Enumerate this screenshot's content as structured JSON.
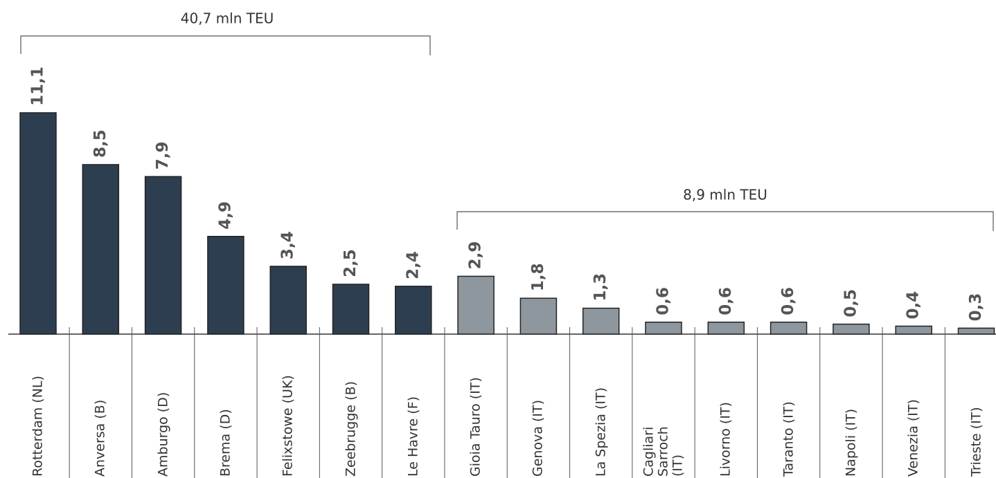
{
  "chart_data": {
    "type": "bar",
    "categories": [
      "Rotterdam (NL)",
      "Anversa (B)",
      "Amburgo (D)",
      "Brema (D)",
      "Felixstowe (UK)",
      "Zeebrugge (B)",
      "Le Havre (F)",
      "Gioia Tauro (IT)",
      "Genova (IT)",
      "La Spezia (IT)",
      "Cagliari Sarroch (IT)",
      "Livorno (IT)",
      "Taranto (IT)",
      "Napoli (IT)",
      "Venezia (IT)",
      "Trieste (IT)"
    ],
    "values": [
      11.1,
      8.5,
      7.9,
      4.9,
      3.4,
      2.5,
      2.4,
      2.9,
      1.8,
      1.3,
      0.6,
      0.6,
      0.6,
      0.5,
      0.4,
      0.3
    ],
    "value_labels": [
      "11,1",
      "8,5",
      "7,9",
      "4,9",
      "3,4",
      "2,5",
      "2,4",
      "2,9",
      "1,8",
      "1,3",
      "0,6",
      "0,6",
      "0,6",
      "0,5",
      "0,4",
      "0,3"
    ],
    "colors": [
      "#2d3e50",
      "#2d3e50",
      "#2d3e50",
      "#2d3e50",
      "#2d3e50",
      "#2d3e50",
      "#2d3e50",
      "#8e969e",
      "#8e969e",
      "#8e969e",
      "#8e969e",
      "#8e969e",
      "#8e969e",
      "#8e969e",
      "#8e969e",
      "#8e969e"
    ],
    "annotations": [
      "40,7 mln TEU",
      "8,9 mln TEU"
    ]
  }
}
